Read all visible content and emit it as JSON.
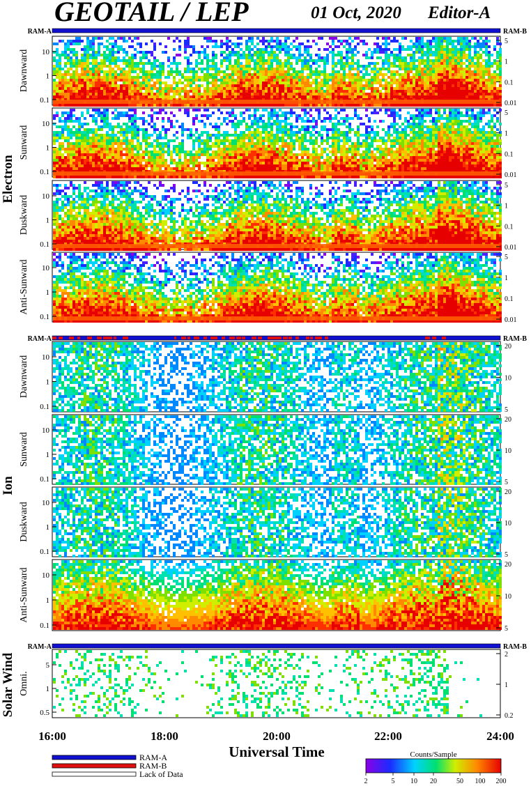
{
  "header": {
    "title": "GEOTAIL / LEP",
    "date": "01 Oct, 2020",
    "editor": "Editor-A"
  },
  "groups": [
    {
      "label": "Electron",
      "ram_left": "RAM-A",
      "ram_right": "RAM-B"
    },
    {
      "label": "Ion",
      "ram_left": "RAM-A",
      "ram_right": "RAM-B"
    },
    {
      "label": "Solar Wind",
      "ram_left": "RAM-A",
      "ram_right": "RAM-B"
    }
  ],
  "x_axis": {
    "label": "Universal Time",
    "ticks": [
      "16:00",
      "18:00",
      "20:00",
      "22:00",
      "24:00"
    ]
  },
  "legend": {
    "ram_a": "RAM-A",
    "ram_b": "RAM-B",
    "lack": "Lack of Data",
    "colors": {
      "ram_a": "#1010d0",
      "ram_b": "#e01010",
      "lack": "#ffffff"
    }
  },
  "colorbar": {
    "title": "Counts/Sample",
    "ticks": [
      "2",
      "5",
      "10",
      "20",
      "50",
      "100",
      "200"
    ]
  },
  "chart_data": [
    {
      "type": "heatmap",
      "group": "Electron",
      "panel": "Dawnward",
      "left_ticks": [
        "10",
        "1",
        "0.1"
      ],
      "right_ticks": [
        "5",
        "1",
        "0.1",
        "0.01"
      ]
    },
    {
      "type": "heatmap",
      "group": "Electron",
      "panel": "Sunward",
      "left_ticks": [
        "10",
        "1",
        "0.1"
      ],
      "right_ticks": [
        "5",
        "1",
        "0.1",
        "0.01"
      ]
    },
    {
      "type": "heatmap",
      "group": "Electron",
      "panel": "Duskward",
      "left_ticks": [
        "10",
        "1",
        "0.1"
      ],
      "right_ticks": [
        "5",
        "1",
        "0.1",
        "0.01"
      ]
    },
    {
      "type": "heatmap",
      "group": "Electron",
      "panel": "Anti-Sunward",
      "left_ticks": [
        "10",
        "1",
        "0.1"
      ],
      "right_ticks": [
        "5",
        "1",
        "0.1",
        "0.01"
      ]
    },
    {
      "type": "heatmap",
      "group": "Ion",
      "panel": "Dawnward",
      "left_ticks": [
        "10",
        "1",
        "0.1"
      ],
      "right_ticks": [
        "20",
        "10",
        "5"
      ]
    },
    {
      "type": "heatmap",
      "group": "Ion",
      "panel": "Sunward",
      "left_ticks": [
        "10",
        "1",
        "0.1"
      ],
      "right_ticks": [
        "20",
        "10",
        "5"
      ]
    },
    {
      "type": "heatmap",
      "group": "Ion",
      "panel": "Duskward",
      "left_ticks": [
        "10",
        "1",
        "0.1"
      ],
      "right_ticks": [
        "20",
        "10",
        "5"
      ]
    },
    {
      "type": "heatmap",
      "group": "Ion",
      "panel": "Anti-Sunward",
      "left_ticks": [
        "10",
        "1",
        "0.1"
      ],
      "right_ticks": [
        "20",
        "10",
        "5"
      ]
    },
    {
      "type": "heatmap",
      "group": "Solar Wind",
      "panel": "Omni.",
      "left_ticks": [
        "5",
        "1",
        "0.5"
      ],
      "right_ticks": [
        "2",
        "1",
        "0.2"
      ]
    }
  ]
}
